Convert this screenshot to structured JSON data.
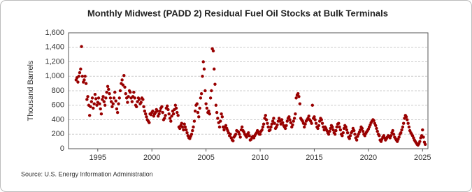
{
  "chart_data": {
    "type": "scatter",
    "title": "Monthly Midwest (PADD 2) Residual Fuel Oil Stocks at Bulk Terminals",
    "y_label": "Thousand Barrels",
    "source": "Source: U.S. Energy Information Administration",
    "xlim": [
      1992.3,
      2025.5
    ],
    "xticks": [
      1995,
      2000,
      2005,
      2010,
      2015,
      2020,
      2025
    ],
    "ylim": [
      0,
      1600
    ],
    "yticks": [
      0,
      200,
      400,
      600,
      800,
      {
        "value": 1000,
        "label": "1,000"
      },
      {
        "value": 1200,
        "label": "1,200"
      },
      {
        "value": 1400,
        "label": "1,400"
      },
      {
        "value": 1600,
        "label": "1,600"
      }
    ],
    "grid": true,
    "series": [
      {
        "name": "Residual Fuel Oil Stocks",
        "color": "#990000",
        "x": [
          1993.0,
          1993.08,
          1993.17,
          1993.25,
          1993.33,
          1993.42,
          1993.5,
          1993.58,
          1993.67,
          1993.75,
          1993.83,
          1993.92,
          1994.0,
          1994.08,
          1994.17,
          1994.25,
          1994.33,
          1994.42,
          1994.5,
          1994.58,
          1994.67,
          1994.75,
          1994.83,
          1994.92,
          1995.0,
          1995.08,
          1995.17,
          1995.25,
          1995.33,
          1995.42,
          1995.5,
          1995.58,
          1995.67,
          1995.75,
          1995.83,
          1995.92,
          1996.0,
          1996.08,
          1996.17,
          1996.25,
          1996.33,
          1996.42,
          1996.5,
          1996.58,
          1996.67,
          1996.75,
          1996.83,
          1996.92,
          1997.0,
          1997.08,
          1997.17,
          1997.25,
          1997.33,
          1997.42,
          1997.5,
          1997.58,
          1997.67,
          1997.75,
          1997.83,
          1997.92,
          1998.0,
          1998.08,
          1998.17,
          1998.25,
          1998.33,
          1998.42,
          1998.5,
          1998.58,
          1998.67,
          1998.75,
          1998.83,
          1998.92,
          1999.0,
          1999.08,
          1999.17,
          1999.25,
          1999.33,
          1999.42,
          1999.5,
          1999.58,
          1999.67,
          1999.75,
          1999.83,
          1999.92,
          2000.0,
          2000.08,
          2000.17,
          2000.25,
          2000.33,
          2000.42,
          2000.5,
          2000.58,
          2000.67,
          2000.75,
          2000.83,
          2000.92,
          2001.0,
          2001.08,
          2001.17,
          2001.25,
          2001.33,
          2001.42,
          2001.5,
          2001.58,
          2001.67,
          2001.75,
          2001.83,
          2001.92,
          2002.0,
          2002.08,
          2002.17,
          2002.25,
          2002.33,
          2002.42,
          2002.5,
          2002.58,
          2002.67,
          2002.75,
          2002.83,
          2002.92,
          2003.0,
          2003.08,
          2003.17,
          2003.25,
          2003.33,
          2003.42,
          2003.5,
          2003.58,
          2003.67,
          2003.75,
          2003.83,
          2003.92,
          2004.0,
          2004.08,
          2004.17,
          2004.25,
          2004.33,
          2004.42,
          2004.5,
          2004.58,
          2004.67,
          2004.75,
          2004.83,
          2004.92,
          2005.0,
          2005.08,
          2005.17,
          2005.25,
          2005.33,
          2005.42,
          2005.5,
          2005.58,
          2005.67,
          2005.75,
          2005.83,
          2005.92,
          2006.0,
          2006.08,
          2006.17,
          2006.25,
          2006.33,
          2006.42,
          2006.5,
          2006.58,
          2006.67,
          2006.75,
          2006.83,
          2006.92,
          2007.0,
          2007.08,
          2007.17,
          2007.25,
          2007.33,
          2007.42,
          2007.5,
          2007.58,
          2007.67,
          2007.75,
          2007.83,
          2007.92,
          2008.0,
          2008.08,
          2008.17,
          2008.25,
          2008.33,
          2008.42,
          2008.5,
          2008.58,
          2008.67,
          2008.75,
          2008.83,
          2008.92,
          2009.0,
          2009.08,
          2009.17,
          2009.25,
          2009.33,
          2009.42,
          2009.5,
          2009.58,
          2009.67,
          2009.75,
          2009.83,
          2009.92,
          2010.0,
          2010.08,
          2010.17,
          2010.25,
          2010.33,
          2010.42,
          2010.5,
          2010.58,
          2010.67,
          2010.75,
          2010.83,
          2010.92,
          2011.0,
          2011.08,
          2011.17,
          2011.25,
          2011.33,
          2011.42,
          2011.5,
          2011.58,
          2011.67,
          2011.75,
          2011.83,
          2011.92,
          2012.0,
          2012.08,
          2012.17,
          2012.25,
          2012.33,
          2012.42,
          2012.5,
          2012.58,
          2012.67,
          2012.75,
          2012.83,
          2012.92,
          2013.0,
          2013.08,
          2013.17,
          2013.25,
          2013.33,
          2013.42,
          2013.5,
          2013.58,
          2013.67,
          2013.75,
          2013.83,
          2013.92,
          2014.0,
          2014.08,
          2014.17,
          2014.25,
          2014.33,
          2014.42,
          2014.5,
          2014.58,
          2014.67,
          2014.75,
          2014.83,
          2014.92,
          2015.0,
          2015.08,
          2015.17,
          2015.25,
          2015.33,
          2015.42,
          2015.5,
          2015.58,
          2015.67,
          2015.75,
          2015.83,
          2015.92,
          2016.0,
          2016.08,
          2016.17,
          2016.25,
          2016.33,
          2016.42,
          2016.5,
          2016.58,
          2016.67,
          2016.75,
          2016.83,
          2016.92,
          2017.0,
          2017.08,
          2017.17,
          2017.25,
          2017.33,
          2017.42,
          2017.5,
          2017.58,
          2017.67,
          2017.75,
          2017.83,
          2017.92,
          2018.0,
          2018.08,
          2018.17,
          2018.25,
          2018.33,
          2018.42,
          2018.5,
          2018.58,
          2018.67,
          2018.75,
          2018.83,
          2018.92,
          2019.0,
          2019.08,
          2019.17,
          2019.25,
          2019.33,
          2019.42,
          2019.5,
          2019.58,
          2019.67,
          2019.75,
          2019.83,
          2019.92,
          2020.0,
          2020.08,
          2020.17,
          2020.25,
          2020.33,
          2020.42,
          2020.5,
          2020.58,
          2020.67,
          2020.75,
          2020.83,
          2020.92,
          2021.0,
          2021.08,
          2021.17,
          2021.25,
          2021.33,
          2021.42,
          2021.5,
          2021.58,
          2021.67,
          2021.75,
          2021.83,
          2021.92,
          2022.0,
          2022.08,
          2022.17,
          2022.25,
          2022.33,
          2022.42,
          2022.5,
          2022.58,
          2022.67,
          2022.75,
          2022.83,
          2022.92,
          2023.0,
          2023.08,
          2023.17,
          2023.25,
          2023.33,
          2023.42,
          2023.5,
          2023.58,
          2023.67,
          2023.75,
          2023.83,
          2023.92,
          2024.0,
          2024.08,
          2024.17,
          2024.25,
          2024.33,
          2024.42,
          2024.5,
          2024.58,
          2024.67,
          2024.75,
          2024.83,
          2024.92,
          2025.0,
          2025.08,
          2025.17,
          2025.25
        ],
        "values": [
          950,
          980,
          920,
          1000,
          1050,
          1100,
          1410,
          1000,
          920,
          950,
          1000,
          900,
          680,
          720,
          600,
          460,
          580,
          650,
          700,
          560,
          620,
          750,
          690,
          600,
          640,
          700,
          620,
          550,
          480,
          680,
          720,
          650,
          600,
          700,
          780,
          860,
          820,
          760,
          700,
          650,
          580,
          620,
          700,
          780,
          660,
          550,
          500,
          620,
          700,
          800,
          900,
          950,
          880,
          1010,
          850,
          760,
          700,
          640,
          720,
          800,
          780,
          700,
          650,
          720,
          780,
          700,
          600,
          580,
          650,
          700,
          680,
          620,
          640,
          700,
          680,
          580,
          520,
          480,
          440,
          400,
          380,
          360,
          480,
          470,
          500,
          520,
          450,
          480,
          500,
          540,
          520,
          450,
          480,
          520,
          560,
          580,
          500,
          400,
          420,
          460,
          560,
          590,
          540,
          480,
          420,
          380,
          450,
          520,
          480,
          540,
          600,
          560,
          500,
          460,
          300,
          280,
          320,
          350,
          300,
          260,
          340,
          300,
          260,
          220,
          180,
          150,
          140,
          170,
          200,
          250,
          300,
          380,
          520,
          600,
          620,
          500,
          440,
          560,
          700,
          760,
          1000,
          1200,
          1100,
          800,
          620,
          560,
          500,
          520,
          480,
          700,
          800,
          1380,
          1350,
          1100,
          890,
          600,
          500,
          420,
          360,
          300,
          380,
          480,
          440,
          300,
          260,
          300,
          320,
          280,
          250,
          220,
          180,
          200,
          150,
          120,
          110,
          160,
          180,
          200,
          250,
          240,
          230,
          200,
          160,
          260,
          300,
          250,
          230,
          200,
          180,
          160,
          200,
          220,
          180,
          120,
          130,
          160,
          170,
          150,
          180,
          200,
          220,
          250,
          230,
          200,
          200,
          240,
          260,
          300,
          340,
          420,
          460,
          400,
          350,
          300,
          250,
          260,
          300,
          340,
          380,
          420,
          350,
          280,
          300,
          330,
          380,
          420,
          380,
          340,
          400,
          360,
          320,
          300,
          280,
          320,
          380,
          420,
          440,
          400,
          360,
          300,
          330,
          380,
          420,
          480,
          700,
          740,
          760,
          720,
          620,
          420,
          400,
          380,
          350,
          300,
          340,
          380,
          400,
          420,
          450,
          400,
          380,
          350,
          600,
          420,
          440,
          400,
          350,
          300,
          280,
          320,
          380,
          420,
          400,
          350,
          300,
          260,
          300,
          280,
          250,
          220,
          200,
          240,
          280,
          320,
          300,
          260,
          220,
          200,
          250,
          300,
          340,
          350,
          300,
          260,
          200,
          180,
          220,
          280,
          320,
          300,
          260,
          220,
          160,
          140,
          180,
          220,
          240,
          280,
          250,
          200,
          150,
          120,
          170,
          200,
          230,
          260,
          300,
          280,
          240,
          200,
          180,
          210,
          230,
          250,
          270,
          300,
          330,
          360,
          380,
          400,
          390,
          350,
          320,
          280,
          240,
          200,
          180,
          120,
          100,
          130,
          160,
          180,
          150,
          120,
          140,
          160,
          180,
          170,
          150,
          180,
          220,
          250,
          200,
          160,
          140,
          120,
          100,
          130,
          160,
          200,
          220,
          260,
          300,
          350,
          420,
          460,
          440,
          400,
          350,
          300,
          250,
          220,
          200,
          180,
          150,
          120,
          100,
          80,
          60,
          50,
          70,
          100,
          150,
          180,
          260,
          160,
          90,
          60
        ]
      }
    ]
  }
}
